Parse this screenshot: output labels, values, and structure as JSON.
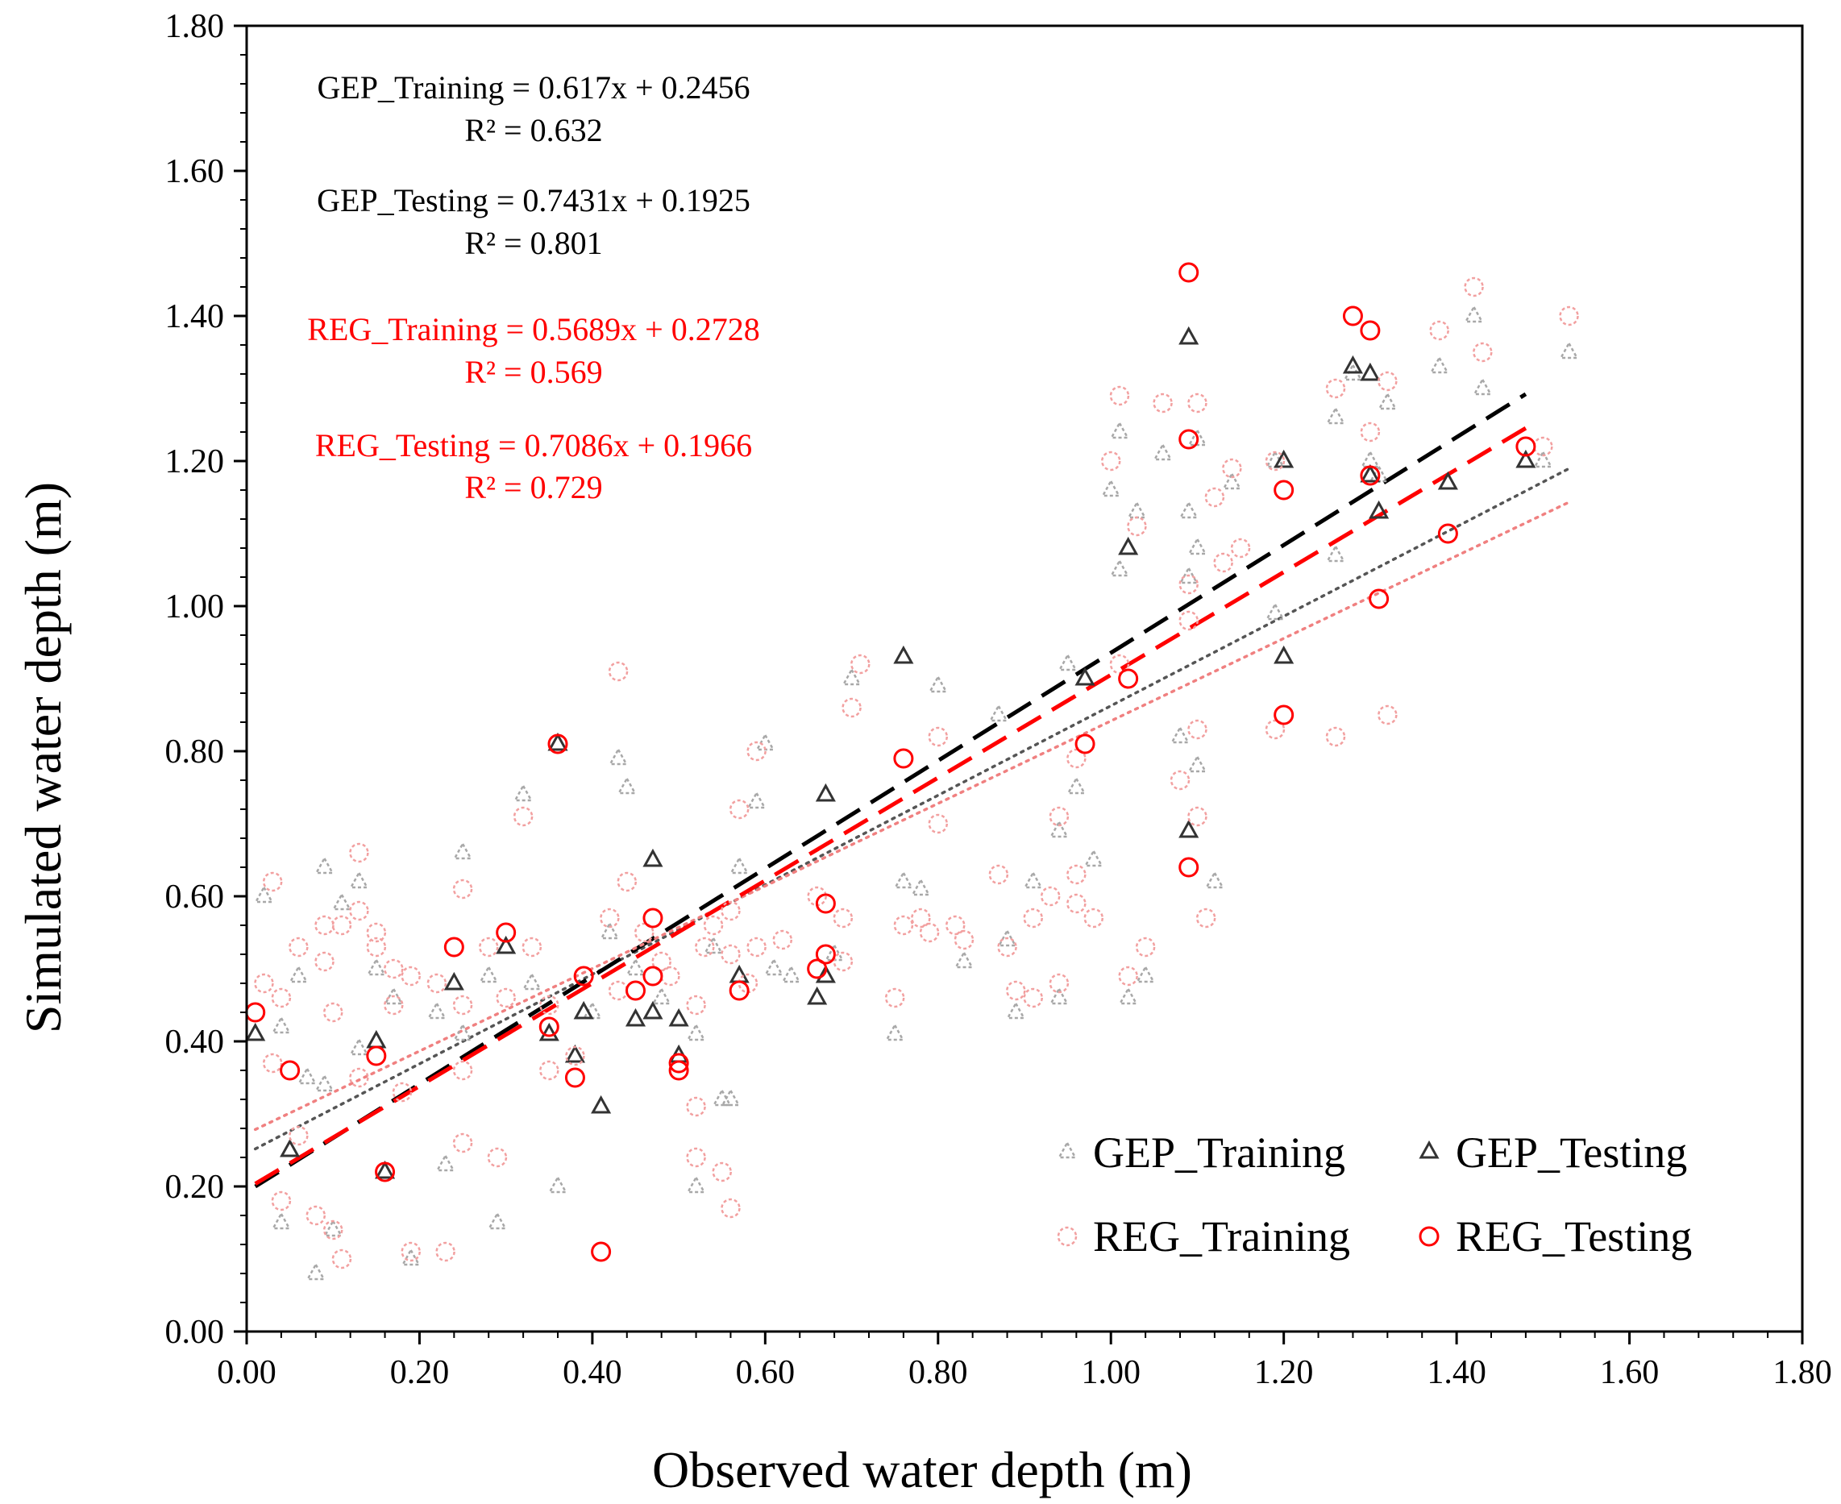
{
  "chart_data": {
    "type": "scatter",
    "title": "",
    "xlabel": "Observed water depth (m)",
    "ylabel": "Simulated water depth (m)",
    "xlim": [
      0,
      1.8
    ],
    "ylim": [
      0,
      1.8
    ],
    "xticks": [
      "0.00",
      "0.20",
      "0.40",
      "0.60",
      "0.80",
      "1.00",
      "1.20",
      "1.40",
      "1.60",
      "1.80"
    ],
    "yticks": [
      "0.00",
      "0.20",
      "0.40",
      "0.60",
      "0.80",
      "1.00",
      "1.20",
      "1.40",
      "1.60",
      "1.80"
    ],
    "grid": false,
    "legend_position": "bottom-right",
    "colors": {
      "gep_training": "#a8a8a8",
      "gep_testing": "#333333",
      "reg_training": "#f2a0a0",
      "reg_testing": "#ff0000",
      "black_eq": "#000000",
      "red_eq": "#ff0000"
    },
    "annotations": [
      {
        "line1": "GEP_Training = 0.617x + 0.2456",
        "line2": "R² = 0.632",
        "color": "black"
      },
      {
        "line1": "GEP_Testing = 0.7431x + 0.1925",
        "line2": "R² = 0.801",
        "color": "black"
      },
      {
        "line1": "REG_Training = 0.5689x + 0.2728",
        "line2": "R² = 0.569",
        "color": "red"
      },
      {
        "line1": "REG_Testing = 0.7086x + 0.1966",
        "line2": "R² = 0.729",
        "color": "red"
      }
    ],
    "trendlines": [
      {
        "name": "GEP_Training",
        "slope": 0.617,
        "intercept": 0.2456,
        "x": [
          0.01,
          1.53
        ],
        "style": "dotted",
        "color": "#555555"
      },
      {
        "name": "GEP_Testing",
        "slope": 0.7431,
        "intercept": 0.1925,
        "x": [
          0.01,
          1.48
        ],
        "style": "dashed",
        "color": "#000000"
      },
      {
        "name": "REG_Training",
        "slope": 0.5689,
        "intercept": 0.2728,
        "x": [
          0.01,
          1.53
        ],
        "style": "dotted",
        "color": "#f08080"
      },
      {
        "name": "REG_Testing",
        "slope": 0.7086,
        "intercept": 0.1966,
        "x": [
          0.01,
          1.48
        ],
        "style": "dashed",
        "color": "#ff0000"
      }
    ],
    "series": [
      {
        "name": "GEP_Training",
        "marker": "triangle",
        "color": "#a8a8a8",
        "points": [
          [
            0.02,
            0.6
          ],
          [
            0.04,
            0.42
          ],
          [
            0.04,
            0.15
          ],
          [
            0.06,
            0.49
          ],
          [
            0.07,
            0.35
          ],
          [
            0.08,
            0.08
          ],
          [
            0.09,
            0.64
          ],
          [
            0.09,
            0.34
          ],
          [
            0.1,
            0.14
          ],
          [
            0.11,
            0.59
          ],
          [
            0.13,
            0.62
          ],
          [
            0.13,
            0.39
          ],
          [
            0.15,
            0.5
          ],
          [
            0.17,
            0.46
          ],
          [
            0.19,
            0.1
          ],
          [
            0.22,
            0.44
          ],
          [
            0.23,
            0.23
          ],
          [
            0.25,
            0.66
          ],
          [
            0.25,
            0.41
          ],
          [
            0.28,
            0.49
          ],
          [
            0.29,
            0.15
          ],
          [
            0.32,
            0.74
          ],
          [
            0.33,
            0.48
          ],
          [
            0.36,
            0.2
          ],
          [
            0.4,
            0.44
          ],
          [
            0.42,
            0.55
          ],
          [
            0.43,
            0.79
          ],
          [
            0.44,
            0.75
          ],
          [
            0.45,
            0.5
          ],
          [
            0.48,
            0.46
          ],
          [
            0.52,
            0.41
          ],
          [
            0.52,
            0.2
          ],
          [
            0.54,
            0.53
          ],
          [
            0.55,
            0.32
          ],
          [
            0.56,
            0.32
          ],
          [
            0.57,
            0.64
          ],
          [
            0.59,
            0.73
          ],
          [
            0.6,
            0.81
          ],
          [
            0.61,
            0.5
          ],
          [
            0.63,
            0.49
          ],
          [
            0.68,
            0.52
          ],
          [
            0.7,
            0.9
          ],
          [
            0.75,
            0.41
          ],
          [
            0.76,
            0.62
          ],
          [
            0.78,
            0.61
          ],
          [
            0.8,
            0.89
          ],
          [
            0.83,
            0.51
          ],
          [
            0.87,
            0.85
          ],
          [
            0.88,
            0.54
          ],
          [
            0.89,
            0.44
          ],
          [
            0.91,
            0.62
          ],
          [
            0.94,
            0.69
          ],
          [
            0.94,
            0.46
          ],
          [
            0.95,
            0.92
          ],
          [
            0.96,
            0.75
          ],
          [
            0.98,
            0.65
          ],
          [
            1.0,
            1.16
          ],
          [
            1.01,
            1.05
          ],
          [
            1.01,
            1.24
          ],
          [
            1.02,
            0.46
          ],
          [
            1.03,
            1.13
          ],
          [
            1.04,
            0.49
          ],
          [
            1.06,
            1.21
          ],
          [
            1.08,
            0.82
          ],
          [
            1.09,
            1.13
          ],
          [
            1.09,
            1.04
          ],
          [
            1.1,
            0.78
          ],
          [
            1.1,
            1.08
          ],
          [
            1.1,
            1.23
          ],
          [
            1.12,
            0.62
          ],
          [
            1.14,
            1.17
          ],
          [
            1.19,
            0.99
          ],
          [
            1.19,
            1.2
          ],
          [
            1.26,
            1.26
          ],
          [
            1.26,
            1.07
          ],
          [
            1.28,
            1.32
          ],
          [
            1.3,
            1.2
          ],
          [
            1.31,
            1.18
          ],
          [
            1.32,
            1.28
          ],
          [
            1.38,
            1.33
          ],
          [
            1.42,
            1.4
          ],
          [
            1.43,
            1.3
          ],
          [
            1.5,
            1.2
          ],
          [
            1.53,
            1.35
          ]
        ]
      },
      {
        "name": "GEP_Testing",
        "marker": "triangle",
        "color": "#333333",
        "points": [
          [
            0.01,
            0.41
          ],
          [
            0.05,
            0.25
          ],
          [
            0.15,
            0.4
          ],
          [
            0.16,
            0.22
          ],
          [
            0.24,
            0.48
          ],
          [
            0.3,
            0.53
          ],
          [
            0.35,
            0.41
          ],
          [
            0.36,
            0.81
          ],
          [
            0.38,
            0.38
          ],
          [
            0.39,
            0.44
          ],
          [
            0.41,
            0.31
          ],
          [
            0.45,
            0.43
          ],
          [
            0.47,
            0.44
          ],
          [
            0.47,
            0.65
          ],
          [
            0.5,
            0.43
          ],
          [
            0.5,
            0.38
          ],
          [
            0.57,
            0.49
          ],
          [
            0.66,
            0.46
          ],
          [
            0.67,
            0.49
          ],
          [
            0.67,
            0.74
          ],
          [
            0.76,
            0.93
          ],
          [
            0.97,
            0.9
          ],
          [
            1.02,
            1.08
          ],
          [
            1.09,
            1.37
          ],
          [
            1.09,
            0.69
          ],
          [
            1.2,
            0.93
          ],
          [
            1.2,
            1.2
          ],
          [
            1.28,
            1.33
          ],
          [
            1.3,
            1.32
          ],
          [
            1.3,
            1.18
          ],
          [
            1.31,
            1.13
          ],
          [
            1.39,
            1.17
          ],
          [
            1.48,
            1.2
          ]
        ]
      },
      {
        "name": "REG_Training",
        "marker": "circle",
        "color": "#f2a0a0",
        "points": [
          [
            0.02,
            0.48
          ],
          [
            0.03,
            0.62
          ],
          [
            0.03,
            0.37
          ],
          [
            0.04,
            0.46
          ],
          [
            0.04,
            0.18
          ],
          [
            0.06,
            0.53
          ],
          [
            0.06,
            0.27
          ],
          [
            0.08,
            0.16
          ],
          [
            0.09,
            0.56
          ],
          [
            0.09,
            0.51
          ],
          [
            0.1,
            0.44
          ],
          [
            0.1,
            0.14
          ],
          [
            0.11,
            0.56
          ],
          [
            0.11,
            0.1
          ],
          [
            0.13,
            0.66
          ],
          [
            0.13,
            0.58
          ],
          [
            0.13,
            0.35
          ],
          [
            0.15,
            0.55
          ],
          [
            0.15,
            0.53
          ],
          [
            0.17,
            0.5
          ],
          [
            0.17,
            0.45
          ],
          [
            0.18,
            0.33
          ],
          [
            0.19,
            0.49
          ],
          [
            0.19,
            0.11
          ],
          [
            0.22,
            0.48
          ],
          [
            0.23,
            0.11
          ],
          [
            0.25,
            0.61
          ],
          [
            0.25,
            0.45
          ],
          [
            0.25,
            0.36
          ],
          [
            0.25,
            0.26
          ],
          [
            0.28,
            0.53
          ],
          [
            0.29,
            0.24
          ],
          [
            0.3,
            0.46
          ],
          [
            0.32,
            0.71
          ],
          [
            0.33,
            0.53
          ],
          [
            0.35,
            0.45
          ],
          [
            0.35,
            0.36
          ],
          [
            0.38,
            0.38
          ],
          [
            0.42,
            0.57
          ],
          [
            0.43,
            0.91
          ],
          [
            0.43,
            0.47
          ],
          [
            0.44,
            0.62
          ],
          [
            0.46,
            0.55
          ],
          [
            0.48,
            0.51
          ],
          [
            0.49,
            0.49
          ],
          [
            0.52,
            0.31
          ],
          [
            0.52,
            0.45
          ],
          [
            0.52,
            0.24
          ],
          [
            0.53,
            0.53
          ],
          [
            0.54,
            0.56
          ],
          [
            0.55,
            0.22
          ],
          [
            0.56,
            0.58
          ],
          [
            0.56,
            0.17
          ],
          [
            0.56,
            0.52
          ],
          [
            0.57,
            0.72
          ],
          [
            0.58,
            0.48
          ],
          [
            0.59,
            0.8
          ],
          [
            0.59,
            0.53
          ],
          [
            0.62,
            0.54
          ],
          [
            0.66,
            0.6
          ],
          [
            0.69,
            0.57
          ],
          [
            0.69,
            0.51
          ],
          [
            0.7,
            0.86
          ],
          [
            0.71,
            0.92
          ],
          [
            0.75,
            0.46
          ],
          [
            0.76,
            0.56
          ],
          [
            0.78,
            0.57
          ],
          [
            0.79,
            0.55
          ],
          [
            0.8,
            0.82
          ],
          [
            0.8,
            0.7
          ],
          [
            0.82,
            0.56
          ],
          [
            0.83,
            0.54
          ],
          [
            0.87,
            0.63
          ],
          [
            0.88,
            0.53
          ],
          [
            0.89,
            0.47
          ],
          [
            0.91,
            0.57
          ],
          [
            0.91,
            0.46
          ],
          [
            0.93,
            0.6
          ],
          [
            0.94,
            0.71
          ],
          [
            0.94,
            0.48
          ],
          [
            0.96,
            0.63
          ],
          [
            0.96,
            0.79
          ],
          [
            0.96,
            0.59
          ],
          [
            0.98,
            0.57
          ],
          [
            1.0,
            1.2
          ],
          [
            1.01,
            1.29
          ],
          [
            1.01,
            0.92
          ],
          [
            1.02,
            0.49
          ],
          [
            1.03,
            1.11
          ],
          [
            1.04,
            0.53
          ],
          [
            1.06,
            1.28
          ],
          [
            1.08,
            0.76
          ],
          [
            1.09,
            1.03
          ],
          [
            1.09,
            0.98
          ],
          [
            1.1,
            1.28
          ],
          [
            1.1,
            0.71
          ],
          [
            1.1,
            0.83
          ],
          [
            1.11,
            0.57
          ],
          [
            1.12,
            1.15
          ],
          [
            1.13,
            1.06
          ],
          [
            1.14,
            1.19
          ],
          [
            1.15,
            1.08
          ],
          [
            1.19,
            0.83
          ],
          [
            1.19,
            1.2
          ],
          [
            1.26,
            1.3
          ],
          [
            1.26,
            0.82
          ],
          [
            1.3,
            1.24
          ],
          [
            1.32,
            0.85
          ],
          [
            1.32,
            1.31
          ],
          [
            1.38,
            1.38
          ],
          [
            1.42,
            1.44
          ],
          [
            1.43,
            1.35
          ],
          [
            1.5,
            1.22
          ],
          [
            1.53,
            1.4
          ]
        ]
      },
      {
        "name": "REG_Testing",
        "marker": "circle",
        "color": "#ff0000",
        "points": [
          [
            0.01,
            0.44
          ],
          [
            0.05,
            0.36
          ],
          [
            0.15,
            0.38
          ],
          [
            0.16,
            0.22
          ],
          [
            0.24,
            0.53
          ],
          [
            0.3,
            0.55
          ],
          [
            0.35,
            0.42
          ],
          [
            0.36,
            0.81
          ],
          [
            0.38,
            0.35
          ],
          [
            0.39,
            0.49
          ],
          [
            0.41,
            0.11
          ],
          [
            0.45,
            0.47
          ],
          [
            0.47,
            0.57
          ],
          [
            0.47,
            0.49
          ],
          [
            0.5,
            0.37
          ],
          [
            0.5,
            0.36
          ],
          [
            0.57,
            0.47
          ],
          [
            0.66,
            0.5
          ],
          [
            0.67,
            0.52
          ],
          [
            0.67,
            0.59
          ],
          [
            0.76,
            0.79
          ],
          [
            0.97,
            0.81
          ],
          [
            1.02,
            0.9
          ],
          [
            1.09,
            1.46
          ],
          [
            1.09,
            0.64
          ],
          [
            1.09,
            1.23
          ],
          [
            1.2,
            0.85
          ],
          [
            1.2,
            1.16
          ],
          [
            1.28,
            1.4
          ],
          [
            1.3,
            1.38
          ],
          [
            1.3,
            1.18
          ],
          [
            1.31,
            1.01
          ],
          [
            1.39,
            1.1
          ],
          [
            1.48,
            1.22
          ]
        ]
      }
    ],
    "legend": [
      "GEP_Training",
      "GEP_Testing",
      "REG_Training",
      "REG_Testing"
    ]
  }
}
